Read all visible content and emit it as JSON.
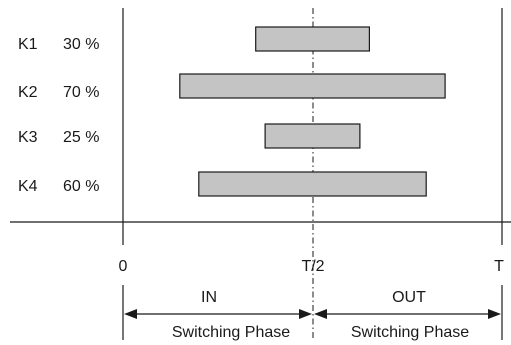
{
  "rows": [
    {
      "name": "K1",
      "percent": "30 %",
      "start": 0.35,
      "end": 0.65
    },
    {
      "name": "K2",
      "percent": "70 %",
      "start": 0.15,
      "end": 0.85
    },
    {
      "name": "K3",
      "percent": "25 %",
      "start": 0.375,
      "end": 0.625
    },
    {
      "name": "K4",
      "percent": "60 %",
      "start": 0.2,
      "end": 0.8
    }
  ],
  "axis": {
    "start_label": "0",
    "mid_label": "T/2",
    "end_label": "T"
  },
  "phases": {
    "in_label": "IN",
    "out_label": "OUT",
    "in_caption": "Switching Phase",
    "out_caption": "Switching Phase"
  },
  "colors": {
    "bar_fill": "#c4c4c4",
    "line": "#1a1a1a"
  }
}
